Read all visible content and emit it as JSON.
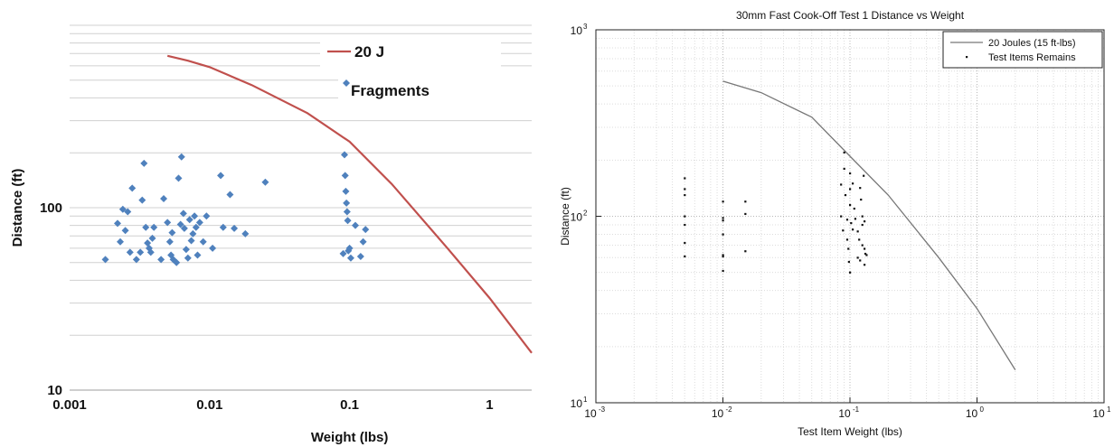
{
  "chart_data": [
    {
      "type": "scatter",
      "title": "",
      "xlabel": "Weight (lbs)",
      "ylabel": "Distance (ft)",
      "xscale": "log",
      "yscale": "log",
      "xlim": [
        0.001,
        2
      ],
      "ylim": [
        10,
        1000
      ],
      "xticks": [
        0.001,
        0.01,
        0.1,
        1
      ],
      "xtick_labels": [
        "0.001",
        "0.01",
        "0.1",
        "1"
      ],
      "yticks": [
        10,
        100
      ],
      "ytick_labels": [
        "10",
        "100"
      ],
      "grid": "horizontal gridlines",
      "legend_position": "top-right",
      "series": [
        {
          "name": "20 J",
          "kind": "line",
          "color": "#c0504d",
          "x": [
            0.005,
            0.007,
            0.01,
            0.02,
            0.05,
            0.1,
            0.2,
            0.5,
            1,
            2
          ],
          "y": [
            680,
            640,
            590,
            470,
            330,
            230,
            135,
            60,
            32,
            16
          ]
        },
        {
          "name": "Fragments",
          "kind": "marker",
          "marker": "diamond",
          "color": "#4f81bd",
          "x": [
            0.0018,
            0.0022,
            0.0023,
            0.0024,
            0.0025,
            0.0026,
            0.0027,
            0.0028,
            0.003,
            0.0032,
            0.0033,
            0.0034,
            0.0035,
            0.0036,
            0.0037,
            0.0038,
            0.0039,
            0.004,
            0.0045,
            0.0047,
            0.005,
            0.0052,
            0.0053,
            0.0054,
            0.0055,
            0.0058,
            0.006,
            0.0062,
            0.0063,
            0.0065,
            0.0066,
            0.0068,
            0.007,
            0.0072,
            0.0074,
            0.0076,
            0.0078,
            0.008,
            0.0082,
            0.0085,
            0.009,
            0.0095,
            0.0105,
            0.012,
            0.0125,
            0.014,
            0.015,
            0.018,
            0.025,
            0.09,
            0.092,
            0.093,
            0.094,
            0.095,
            0.096,
            0.097,
            0.098,
            0.1,
            0.102,
            0.11,
            0.12,
            0.125,
            0.13
          ],
          "y": [
            52,
            82,
            65,
            98,
            75,
            95,
            57,
            128,
            52,
            57,
            110,
            175,
            78,
            64,
            60,
            57,
            68,
            78,
            52,
            112,
            83,
            65,
            55,
            73,
            52,
            50,
            145,
            81,
            190,
            93,
            77,
            59,
            53,
            86,
            66,
            72,
            90,
            78,
            55,
            83,
            65,
            90,
            60,
            150,
            78,
            118,
            77,
            72,
            138,
            56,
            195,
            150,
            123,
            106,
            95,
            85,
            58,
            60,
            53,
            80,
            54,
            65,
            76
          ]
        }
      ]
    },
    {
      "type": "scatter",
      "title": "30mm Fast Cook-Off Test 1 Distance vs Weight",
      "xlabel": "Test Item Weight (lbs)",
      "ylabel": "Distance (ft)",
      "xscale": "log",
      "yscale": "log",
      "xlim": [
        0.001,
        10
      ],
      "ylim": [
        10,
        1000
      ],
      "xticks": [
        0.001,
        0.01,
        0.1,
        1,
        10
      ],
      "xtick_labels": [
        [
          "10",
          "-3"
        ],
        [
          "10",
          "-2"
        ],
        [
          "10",
          "-1"
        ],
        [
          "10",
          "0"
        ],
        [
          "10",
          "1"
        ]
      ],
      "yticks": [
        10,
        100,
        1000
      ],
      "ytick_labels": [
        [
          "10",
          "1"
        ],
        [
          "10",
          "2"
        ],
        [
          "10",
          "3"
        ]
      ],
      "grid": "major and minor dotted gridlines",
      "legend_position": "top-right",
      "series": [
        {
          "name": "20 Joules (15 ft-lbs)",
          "kind": "line",
          "color": "#777777",
          "x": [
            0.01,
            0.02,
            0.05,
            0.1,
            0.2,
            0.5,
            1,
            2
          ],
          "y": [
            530,
            460,
            340,
            210,
            130,
            60,
            32,
            15
          ]
        },
        {
          "name": "Test Items Remains",
          "kind": "marker",
          "marker": "dot",
          "color": "#111111",
          "x": [
            0.005,
            0.005,
            0.005,
            0.005,
            0.005,
            0.005,
            0.005,
            0.01,
            0.01,
            0.01,
            0.01,
            0.01,
            0.01,
            0.01,
            0.015,
            0.015,
            0.015,
            0.085,
            0.085,
            0.088,
            0.09,
            0.09,
            0.092,
            0.095,
            0.095,
            0.097,
            0.098,
            0.1,
            0.1,
            0.1,
            0.1,
            0.102,
            0.105,
            0.105,
            0.108,
            0.11,
            0.115,
            0.115,
            0.118,
            0.12,
            0.12,
            0.122,
            0.125,
            0.125,
            0.125,
            0.128,
            0.13,
            0.13,
            0.13,
            0.132,
            0.135
          ],
          "y": [
            160,
            140,
            130,
            100,
            90,
            72,
            61,
            120,
            98,
            95,
            80,
            62,
            61,
            51,
            120,
            103,
            65,
            148,
            100,
            84,
            220,
            180,
            130,
            96,
            75,
            67,
            57,
            50,
            170,
            140,
            115,
            92,
            150,
            85,
            110,
            97,
            83,
            60,
            75,
            142,
            58,
            123,
            100,
            90,
            70,
            165,
            94,
            67,
            55,
            63,
            62
          ]
        }
      ]
    }
  ]
}
